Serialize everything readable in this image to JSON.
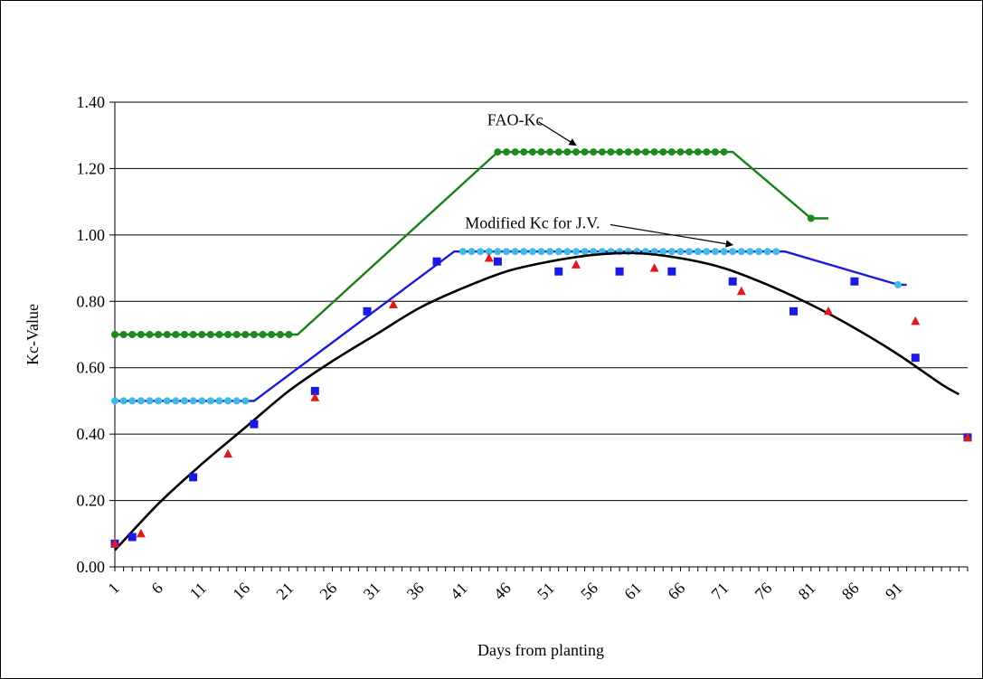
{
  "chart_data": {
    "type": "line",
    "title": "",
    "xlabel": "Days from planting",
    "ylabel": "Kc-Value",
    "xlim": [
      1,
      99
    ],
    "ylim": [
      0,
      1.4
    ],
    "grid": true,
    "legend": "none",
    "x_tick_labels": [
      "1",
      "6",
      "11",
      "16",
      "21",
      "26",
      "31",
      "36",
      "41",
      "46",
      "51",
      "56",
      "61",
      "66",
      "71",
      "76",
      "81",
      "86",
      "91"
    ],
    "y_tick_labels": [
      "0.00",
      "0.20",
      "0.40",
      "0.60",
      "0.80",
      "1.00",
      "1.20",
      "1.40"
    ],
    "annotations": [
      {
        "text": "FAO-Kc",
        "x": 47,
        "y": 1.33,
        "arrow_to": [
          54,
          1.27
        ]
      },
      {
        "text": "Modified Kc for J.V.",
        "x": 49,
        "y": 1.02,
        "arrow_to": [
          72,
          0.97
        ]
      }
    ],
    "series": [
      {
        "kind": "dotted-line",
        "color": "#1e8a1e",
        "line_color": "#178017",
        "plateaus": [
          {
            "from": 1,
            "to": 21,
            "value": 0.7
          },
          {
            "from": 45,
            "to": 71,
            "value": 1.25
          }
        ],
        "line": [
          [
            1,
            0.7
          ],
          [
            22,
            0.7
          ],
          [
            45,
            1.25
          ],
          [
            72,
            1.25
          ],
          [
            81,
            1.05
          ],
          [
            83,
            1.05
          ]
        ],
        "extra_points": [
          [
            81,
            1.05
          ]
        ]
      },
      {
        "kind": "dotted-line",
        "color": "#3fb9e6",
        "line_color": "#1a1ad8",
        "plateaus": [
          {
            "from": 1,
            "to": 16,
            "value": 0.5
          },
          {
            "from": 41,
            "to": 77,
            "value": 0.95
          }
        ],
        "line": [
          [
            1,
            0.5
          ],
          [
            17,
            0.5
          ],
          [
            40,
            0.95
          ],
          [
            78,
            0.95
          ],
          [
            91,
            0.85
          ],
          [
            92,
            0.85
          ]
        ],
        "extra_points": [
          [
            91,
            0.85
          ]
        ]
      },
      {
        "kind": "markers",
        "marker": "square",
        "color": "#1a1ae0",
        "points": [
          [
            1,
            0.07
          ],
          [
            3,
            0.09
          ],
          [
            10,
            0.27
          ],
          [
            17,
            0.43
          ],
          [
            24,
            0.53
          ],
          [
            30,
            0.77
          ],
          [
            38,
            0.92
          ],
          [
            45,
            0.92
          ],
          [
            52,
            0.89
          ],
          [
            59,
            0.89
          ],
          [
            65,
            0.89
          ],
          [
            72,
            0.86
          ],
          [
            79,
            0.77
          ],
          [
            86,
            0.86
          ],
          [
            93,
            0.63
          ],
          [
            99,
            0.39
          ]
        ]
      },
      {
        "kind": "markers",
        "marker": "triangle",
        "color": "#e01a1a",
        "points": [
          [
            1,
            0.07
          ],
          [
            4,
            0.1
          ],
          [
            14,
            0.34
          ],
          [
            24,
            0.51
          ],
          [
            33,
            0.79
          ],
          [
            44,
            0.93
          ],
          [
            54,
            0.91
          ],
          [
            63,
            0.9
          ],
          [
            73,
            0.83
          ],
          [
            83,
            0.77
          ],
          [
            93,
            0.74
          ],
          [
            99,
            0.39
          ]
        ]
      },
      {
        "kind": "trendline",
        "color": "#000000",
        "points": [
          [
            1,
            0.05
          ],
          [
            6,
            0.19
          ],
          [
            11,
            0.31
          ],
          [
            16,
            0.42
          ],
          [
            21,
            0.53
          ],
          [
            26,
            0.62
          ],
          [
            31,
            0.7
          ],
          [
            36,
            0.78
          ],
          [
            41,
            0.84
          ],
          [
            46,
            0.89
          ],
          [
            51,
            0.92
          ],
          [
            56,
            0.94
          ],
          [
            61,
            0.945
          ],
          [
            66,
            0.93
          ],
          [
            71,
            0.9
          ],
          [
            76,
            0.85
          ],
          [
            81,
            0.79
          ],
          [
            86,
            0.72
          ],
          [
            91,
            0.64
          ],
          [
            96,
            0.55
          ],
          [
            98,
            0.52
          ]
        ]
      }
    ]
  }
}
